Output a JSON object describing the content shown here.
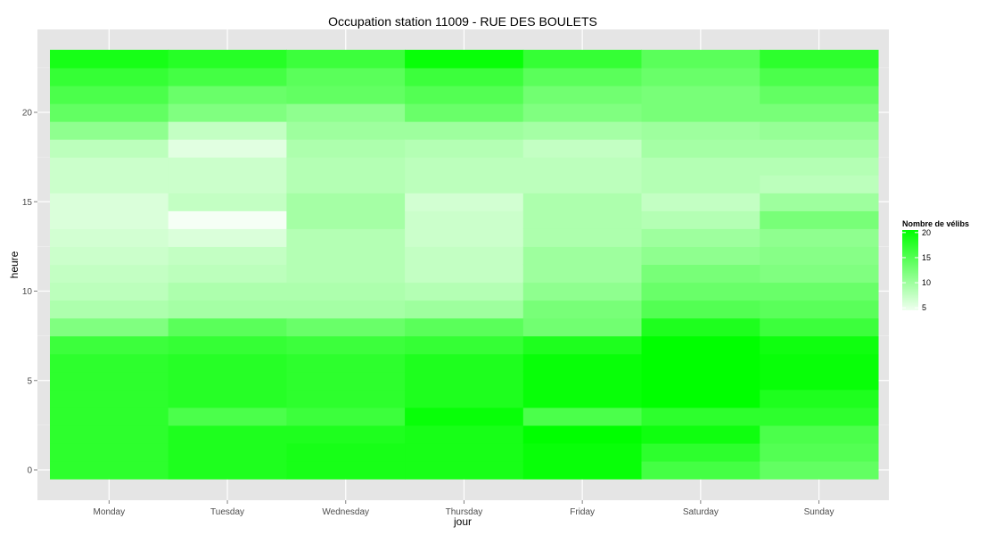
{
  "chart_data": {
    "type": "heatmap",
    "title": "Occupation station 11009 - RUE DES BOULETS",
    "xlabel": "jour",
    "ylabel": "heure",
    "categories": [
      "Monday",
      "Tuesday",
      "Wednesday",
      "Thursday",
      "Friday",
      "Saturday",
      "Sunday"
    ],
    "hours": [
      0,
      1,
      2,
      3,
      4,
      5,
      6,
      7,
      8,
      9,
      10,
      11,
      12,
      13,
      14,
      15,
      16,
      17,
      18,
      19,
      20,
      21,
      22,
      23
    ],
    "y_ticks": [
      0,
      5,
      10,
      15,
      20
    ],
    "ylim": [
      -0.5,
      23.5
    ],
    "values": [
      [
        17.5,
        17.5,
        17.5,
        17.5,
        17.5,
        17.5,
        17.5,
        16.5,
        12,
        9,
        8,
        7.5,
        7,
        6.5,
        6,
        6,
        7,
        7,
        8,
        11,
        14,
        15.5,
        17,
        19
      ],
      [
        18.5,
        18.5,
        18.5,
        15.5,
        18,
        18,
        18,
        17,
        14.5,
        9.5,
        9,
        8,
        7.5,
        6,
        4.2,
        7.5,
        7,
        7,
        5.5,
        7.5,
        12,
        13.5,
        16,
        18
      ],
      [
        19,
        19,
        18.5,
        16.5,
        17.5,
        17.5,
        17.5,
        16.5,
        13.5,
        9.5,
        9,
        8.5,
        8.5,
        8.5,
        9.5,
        9.5,
        8.5,
        8.5,
        9,
        10,
        11,
        14,
        14.5,
        16.5
      ],
      [
        19,
        19,
        19,
        20,
        18.5,
        18.5,
        18.5,
        17,
        14.5,
        10,
        8.5,
        7.5,
        7.5,
        7,
        7,
        6.5,
        8,
        8,
        8.5,
        10,
        13.5,
        15,
        16.5,
        20
      ],
      [
        20,
        20,
        21.5,
        15.5,
        20,
        20,
        20,
        18.5,
        13,
        12.5,
        11,
        10,
        10,
        9,
        9,
        9,
        8,
        8,
        7.5,
        9.5,
        12,
        13,
        14.5,
        17
      ],
      [
        16,
        17.5,
        19.5,
        17.5,
        23,
        23,
        23,
        21,
        18.5,
        15,
        13.5,
        12.5,
        11,
        10,
        8.5,
        7.5,
        8.5,
        8.5,
        9.5,
        10,
        12.5,
        12.5,
        13.5,
        14.5
      ],
      [
        14,
        15,
        15.5,
        17.5,
        18.5,
        20,
        20,
        19.5,
        16.5,
        14.5,
        13.5,
        12,
        11.5,
        11,
        12.5,
        10,
        8,
        8.5,
        9.5,
        10.5,
        12.5,
        14,
        15.5,
        17.5
      ]
    ],
    "legend": {
      "title": "Nombre de vélibs",
      "ticks": [
        "20",
        "15",
        "10",
        "5"
      ],
      "min": 3.5,
      "max": 20.5,
      "placement": "right"
    },
    "colors": {
      "low": "#ffffff",
      "high": "#00ff00",
      "panel_bg": "#e5e5e5",
      "grid_major": "#ffffff",
      "grid_minor": "#f2f2f2"
    },
    "grid": true
  }
}
